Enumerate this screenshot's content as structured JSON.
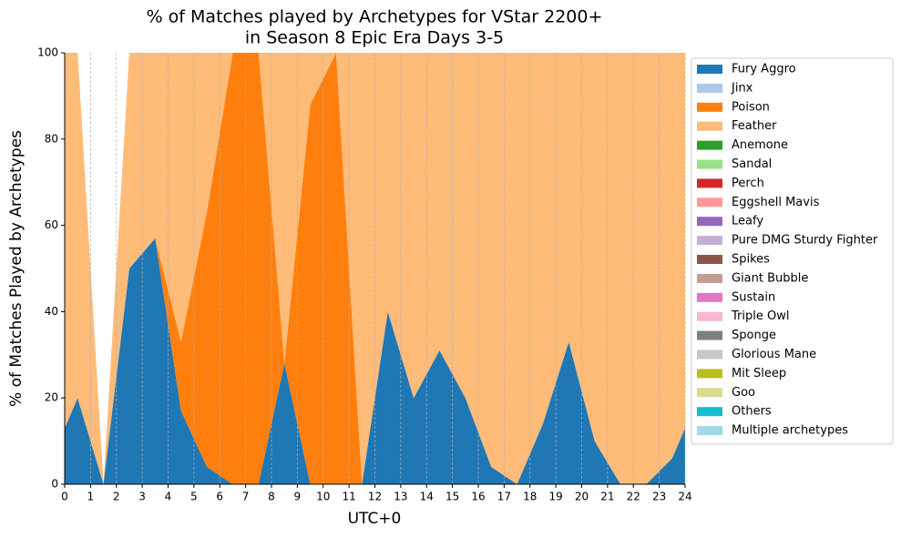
{
  "chart_data": {
    "type": "stacked_area",
    "title": [
      "% of Matches played by Archetypes for VStar 2200+",
      "in Season 8 Epic Era Days 3-5"
    ],
    "x_label": "UTC+0",
    "y_label": "% of Matches Played by Archetypes",
    "x": [
      0,
      0.5,
      1.5,
      2.5,
      3.5,
      4.5,
      5.5,
      6.5,
      7.5,
      8.5,
      9.5,
      10.5,
      11.5,
      12.5,
      13.5,
      14.5,
      15.5,
      16.5,
      17.5,
      18.5,
      19.5,
      20.5,
      21.5,
      22.5,
      23.5,
      24
    ],
    "xlim": [
      0,
      24
    ],
    "xticks": [
      0,
      1,
      2,
      3,
      4,
      5,
      6,
      7,
      8,
      9,
      10,
      11,
      12,
      13,
      14,
      15,
      16,
      17,
      18,
      19,
      20,
      21,
      22,
      23,
      24
    ],
    "ylim": [
      0,
      100
    ],
    "yticks": [
      0,
      20,
      40,
      60,
      80,
      100
    ],
    "grid": "x",
    "legend": "outside right",
    "series": [
      {
        "name": "Fury Aggro",
        "color": "#1f77b4",
        "values": [
          13,
          20,
          0,
          50,
          57,
          17,
          4,
          0,
          0,
          28,
          0,
          0,
          0,
          40,
          20,
          31,
          20,
          4,
          0,
          14,
          33,
          10,
          0,
          0,
          6,
          13
        ]
      },
      {
        "name": "Jinx",
        "color": "#aec7e8",
        "values": [
          0,
          0,
          0,
          0,
          0,
          0,
          0,
          0,
          0,
          0,
          0,
          0,
          0,
          0,
          0,
          0,
          0,
          0,
          0,
          0,
          0,
          0,
          0,
          0,
          0,
          0
        ]
      },
      {
        "name": "Poison",
        "color": "#ff7f0e",
        "values": [
          0,
          0,
          0,
          0,
          0,
          16,
          59,
          100,
          100,
          0,
          88,
          100,
          0,
          0,
          0,
          0,
          0,
          0,
          0,
          0,
          0,
          0,
          0,
          0,
          0,
          0
        ]
      },
      {
        "name": "Feather",
        "color": "#ffbb78",
        "values": [
          87,
          80,
          0,
          50,
          43,
          67,
          37,
          0,
          0,
          72,
          12,
          0,
          100,
          60,
          80,
          69,
          80,
          96,
          100,
          86,
          67,
          90,
          100,
          100,
          94,
          87
        ]
      },
      {
        "name": "Anemone",
        "color": "#2ca02c",
        "values": [
          0,
          0,
          0,
          0,
          0,
          0,
          0,
          0,
          0,
          0,
          0,
          0,
          0,
          0,
          0,
          0,
          0,
          0,
          0,
          0,
          0,
          0,
          0,
          0,
          0,
          0
        ]
      },
      {
        "name": "Sandal",
        "color": "#98df8a",
        "values": [
          0,
          0,
          0,
          0,
          0,
          0,
          0,
          0,
          0,
          0,
          0,
          0,
          0,
          0,
          0,
          0,
          0,
          0,
          0,
          0,
          0,
          0,
          0,
          0,
          0,
          0
        ]
      },
      {
        "name": "Perch",
        "color": "#d62728",
        "values": [
          0,
          0,
          0,
          0,
          0,
          0,
          0,
          0,
          0,
          0,
          0,
          0,
          0,
          0,
          0,
          0,
          0,
          0,
          0,
          0,
          0,
          0,
          0,
          0,
          0,
          0
        ]
      },
      {
        "name": "Eggshell Mavis",
        "color": "#ff9896",
        "values": [
          0,
          0,
          0,
          0,
          0,
          0,
          0,
          0,
          0,
          0,
          0,
          0,
          0,
          0,
          0,
          0,
          0,
          0,
          0,
          0,
          0,
          0,
          0,
          0,
          0,
          0
        ]
      },
      {
        "name": "Leafy",
        "color": "#9467bd",
        "values": [
          0,
          0,
          0,
          0,
          0,
          0,
          0,
          0,
          0,
          0,
          0,
          0,
          0,
          0,
          0,
          0,
          0,
          0,
          0,
          0,
          0,
          0,
          0,
          0,
          0,
          0
        ]
      },
      {
        "name": "Pure DMG Sturdy Fighter",
        "color": "#c5b0d5",
        "values": [
          0,
          0,
          0,
          0,
          0,
          0,
          0,
          0,
          0,
          0,
          0,
          0,
          0,
          0,
          0,
          0,
          0,
          0,
          0,
          0,
          0,
          0,
          0,
          0,
          0,
          0
        ]
      },
      {
        "name": "Spikes",
        "color": "#8c564b",
        "values": [
          0,
          0,
          0,
          0,
          0,
          0,
          0,
          0,
          0,
          0,
          0,
          0,
          0,
          0,
          0,
          0,
          0,
          0,
          0,
          0,
          0,
          0,
          0,
          0,
          0,
          0
        ]
      },
      {
        "name": "Giant Bubble",
        "color": "#c49c94",
        "values": [
          0,
          0,
          0,
          0,
          0,
          0,
          0,
          0,
          0,
          0,
          0,
          0,
          0,
          0,
          0,
          0,
          0,
          0,
          0,
          0,
          0,
          0,
          0,
          0,
          0,
          0
        ]
      },
      {
        "name": "Sustain",
        "color": "#e377c2",
        "values": [
          0,
          0,
          0,
          0,
          0,
          0,
          0,
          0,
          0,
          0,
          0,
          0,
          0,
          0,
          0,
          0,
          0,
          0,
          0,
          0,
          0,
          0,
          0,
          0,
          0,
          0
        ]
      },
      {
        "name": "Triple Owl",
        "color": "#f7b6d2",
        "values": [
          0,
          0,
          0,
          0,
          0,
          0,
          0,
          0,
          0,
          0,
          0,
          0,
          0,
          0,
          0,
          0,
          0,
          0,
          0,
          0,
          0,
          0,
          0,
          0,
          0,
          0
        ]
      },
      {
        "name": "Sponge",
        "color": "#7f7f7f",
        "values": [
          0,
          0,
          0,
          0,
          0,
          0,
          0,
          0,
          0,
          0,
          0,
          0,
          0,
          0,
          0,
          0,
          0,
          0,
          0,
          0,
          0,
          0,
          0,
          0,
          0,
          0
        ]
      },
      {
        "name": "Glorious Mane",
        "color": "#c7c7c7",
        "values": [
          0,
          0,
          0,
          0,
          0,
          0,
          0,
          0,
          0,
          0,
          0,
          0,
          0,
          0,
          0,
          0,
          0,
          0,
          0,
          0,
          0,
          0,
          0,
          0,
          0,
          0
        ]
      },
      {
        "name": "Mit Sleep",
        "color": "#bcbd22",
        "values": [
          0,
          0,
          0,
          0,
          0,
          0,
          0,
          0,
          0,
          0,
          0,
          0,
          0,
          0,
          0,
          0,
          0,
          0,
          0,
          0,
          0,
          0,
          0,
          0,
          0,
          0
        ]
      },
      {
        "name": "Goo",
        "color": "#dbdb8d",
        "values": [
          0,
          0,
          0,
          0,
          0,
          0,
          0,
          0,
          0,
          0,
          0,
          0,
          0,
          0,
          0,
          0,
          0,
          0,
          0,
          0,
          0,
          0,
          0,
          0,
          0,
          0
        ]
      },
      {
        "name": "Others",
        "color": "#17becf",
        "values": [
          0,
          0,
          0,
          0,
          0,
          0,
          0,
          0,
          0,
          0,
          0,
          0,
          0,
          0,
          0,
          0,
          0,
          0,
          0,
          0,
          0,
          0,
          0,
          0,
          0,
          0
        ]
      },
      {
        "name": "Multiple archetypes",
        "color": "#9edae5",
        "values": [
          0,
          0,
          0,
          0,
          0,
          0,
          0,
          0,
          0,
          0,
          0,
          0,
          0,
          0,
          0,
          0,
          0,
          0,
          0,
          0,
          0,
          0,
          0,
          0,
          0,
          0
        ]
      }
    ]
  }
}
